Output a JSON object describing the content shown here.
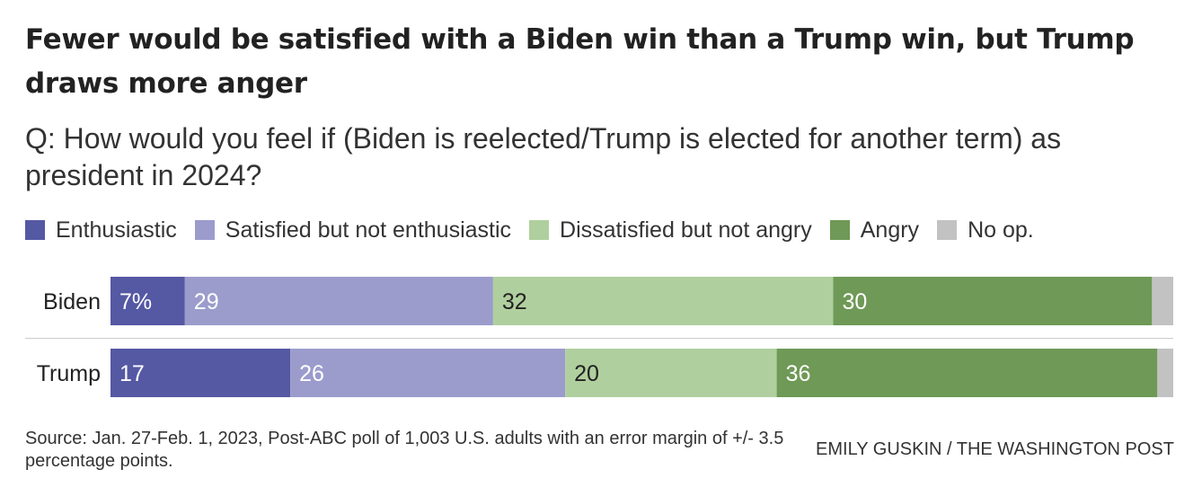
{
  "chart_data": {
    "type": "bar",
    "orientation": "horizontal",
    "stacked": true,
    "title": "Fewer would be satisfied with a Biden win than a Trump win, but Trump draws more anger",
    "subtitle": "Q: How would you feel if (Biden is reelected/Trump is elected for another term) as president in 2024?",
    "categories": [
      "Biden",
      "Trump"
    ],
    "xlim": [
      0,
      100
    ],
    "legend_position": "top",
    "series": [
      {
        "name": "Enthusiastic",
        "color": "#5558a3",
        "values": [
          7,
          17
        ],
        "labels": [
          "7%",
          "17"
        ],
        "label_color": "#ffffff"
      },
      {
        "name": "Satisfied but not enthusiastic",
        "color": "#9b9ccc",
        "values": [
          29,
          26
        ],
        "labels": [
          "29",
          "26"
        ],
        "label_color": "#ffffff"
      },
      {
        "name": "Dissatisfied but not angry",
        "color": "#b0cf9e",
        "values": [
          32,
          20
        ],
        "labels": [
          "32",
          "20"
        ],
        "label_color": "#222222"
      },
      {
        "name": "Angry",
        "color": "#6f9956",
        "values": [
          30,
          36
        ],
        "labels": [
          "30",
          "36"
        ],
        "label_color": "#ffffff"
      },
      {
        "name": "No op.",
        "color": "#c2c2c2",
        "values": [
          2,
          1.5
        ],
        "labels": [
          "",
          ""
        ],
        "label_color": "#222222"
      }
    ]
  },
  "source": "Source: Jan. 27-Feb. 1, 2023, Post-ABC poll of 1,003 U.S. adults with an error margin of +/- 3.5 percentage points.",
  "credit": "EMILY GUSKIN / THE WASHINGTON POST"
}
